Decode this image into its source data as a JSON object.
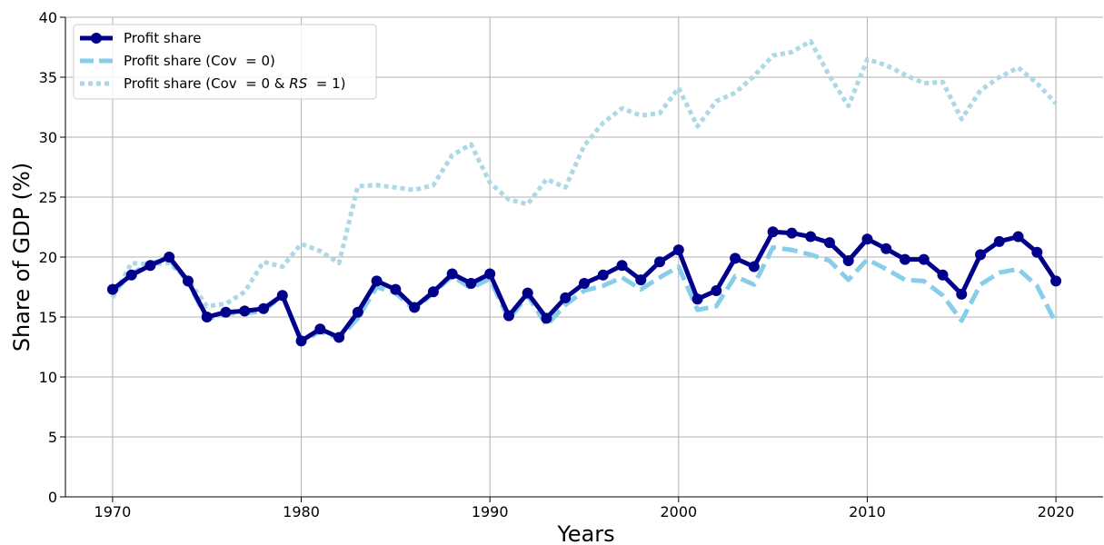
{
  "chart_data": {
    "type": "line",
    "xlabel": "Years",
    "ylabel": "Share of GDP (%)",
    "xlim": [
      1967.5,
      2022.5
    ],
    "ylim": [
      0,
      40
    ],
    "xticks": [
      1970,
      1980,
      1990,
      2000,
      2010,
      2020
    ],
    "yticks": [
      0,
      5,
      10,
      15,
      20,
      25,
      30,
      35,
      40
    ],
    "grid": true,
    "legend_position": "top-left",
    "x": [
      1970,
      1971,
      1972,
      1973,
      1974,
      1975,
      1976,
      1977,
      1978,
      1979,
      1980,
      1981,
      1982,
      1983,
      1984,
      1985,
      1986,
      1987,
      1988,
      1989,
      1990,
      1991,
      1992,
      1993,
      1994,
      1995,
      1996,
      1997,
      1998,
      1999,
      2000,
      2001,
      2002,
      2003,
      2004,
      2005,
      2006,
      2007,
      2008,
      2009,
      2010,
      2011,
      2012,
      2013,
      2014,
      2015,
      2016,
      2017,
      2018,
      2019,
      2020
    ],
    "series": [
      {
        "name": "Profit share",
        "color": "#00008b",
        "style": "solid-markers",
        "values": [
          17.3,
          18.5,
          19.3,
          20.0,
          18.0,
          15.0,
          15.4,
          15.5,
          15.7,
          16.8,
          13.0,
          14.0,
          13.3,
          15.4,
          18.0,
          17.3,
          15.8,
          17.1,
          18.6,
          17.8,
          18.6,
          15.1,
          17.0,
          14.9,
          16.6,
          17.8,
          18.5,
          19.3,
          18.1,
          19.6,
          20.6,
          16.5,
          17.2,
          19.9,
          19.2,
          22.1,
          22.0,
          21.7,
          21.2,
          19.7,
          21.5,
          20.7,
          19.8,
          19.8,
          18.5,
          16.9,
          20.2,
          21.3,
          21.7,
          20.4,
          18.0
        ]
      },
      {
        "name": "Profit share (Cov  = 0)",
        "color": "#87ceeb",
        "style": "dashed",
        "values": [
          17.0,
          18.6,
          19.5,
          19.8,
          17.9,
          14.8,
          15.3,
          15.3,
          15.5,
          16.8,
          12.9,
          13.8,
          13.2,
          14.9,
          17.5,
          17.0,
          15.6,
          17.0,
          18.4,
          17.4,
          18.2,
          14.8,
          16.8,
          14.3,
          16.0,
          17.2,
          17.6,
          18.3,
          17.3,
          18.3,
          19.2,
          15.6,
          15.9,
          18.4,
          17.7,
          20.8,
          20.6,
          20.2,
          19.7,
          18.1,
          19.8,
          19.0,
          18.1,
          18.0,
          16.8,
          14.7,
          17.7,
          18.7,
          19.0,
          17.6,
          14.5
        ]
      },
      {
        "name": "Profit share (Cov  = 0 & RS  = 1)",
        "color": "#add8e6",
        "style": "dotted",
        "values": [
          16.6,
          19.5,
          19.4,
          19.5,
          18.1,
          15.9,
          16.1,
          17.1,
          19.6,
          19.2,
          21.1,
          20.5,
          19.5,
          25.9,
          26.0,
          25.8,
          25.6,
          26.0,
          28.5,
          29.4,
          26.2,
          24.8,
          24.4,
          26.5,
          25.8,
          29.3,
          31.2,
          32.4,
          31.8,
          32.0,
          34.1,
          30.9,
          33.0,
          33.7,
          35.1,
          36.8,
          37.1,
          38.0,
          35.1,
          32.6,
          36.5,
          36.0,
          35.2,
          34.5,
          34.6,
          31.5,
          33.9,
          35.0,
          35.8,
          34.5,
          32.8
        ]
      }
    ]
  },
  "legend": {
    "entry1": "Profit share",
    "entry2_prefix": "Profit share (Cov  = 0)",
    "entry3_prefix": "Profit share (Cov  = 0 & ",
    "entry3_italic": "RS",
    "entry3_suffix": "  = 1)"
  }
}
